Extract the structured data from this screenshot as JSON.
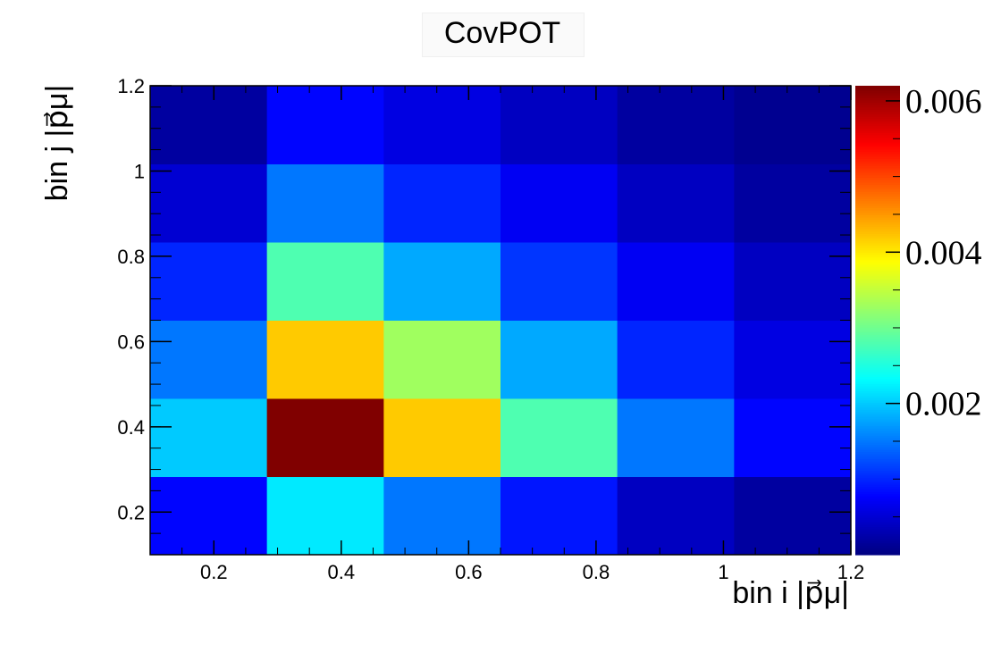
{
  "chart_data": {
    "type": "heatmap",
    "title": "CovPOT",
    "xlabel": "bin i |p⃗μ|",
    "ylabel": "bin j |p⃗μ|",
    "xlim": [
      0.1,
      1.2
    ],
    "ylim": [
      0.1,
      1.2
    ],
    "x_edges": [
      0.1,
      0.2833,
      0.4667,
      0.65,
      0.8333,
      1.0167,
      1.2
    ],
    "y_edges": [
      0.1,
      0.2833,
      0.4667,
      0.65,
      0.8333,
      1.0167,
      1.2
    ],
    "x_ticks": [
      "0.2",
      "0.4",
      "0.6",
      "0.8",
      "1",
      "1.2"
    ],
    "x_tick_values": [
      0.2,
      0.4,
      0.6,
      0.8,
      1.0,
      1.2
    ],
    "y_ticks": [
      "0.2",
      "0.4",
      "0.6",
      "0.8",
      "1",
      "1.2"
    ],
    "y_tick_values": [
      0.2,
      0.4,
      0.6,
      0.8,
      1.0,
      1.2
    ],
    "z_range": [
      0.0,
      0.0062
    ],
    "z_ticks": [
      "0.002",
      "0.004",
      "0.006"
    ],
    "z_tick_values": [
      0.002,
      0.004,
      0.006
    ],
    "colormap": "jet",
    "grid": false,
    "values": [
      [
        0.0008,
        0.0022,
        0.0015,
        0.0009,
        0.0004,
        0.0002
      ],
      [
        0.002,
        0.0062,
        0.0042,
        0.0028,
        0.0015,
        0.0008
      ],
      [
        0.0015,
        0.0042,
        0.0033,
        0.0018,
        0.001,
        0.0006
      ],
      [
        0.001,
        0.0028,
        0.0018,
        0.0011,
        0.0007,
        0.0004
      ],
      [
        0.0005,
        0.0015,
        0.001,
        0.0007,
        0.0004,
        0.0002
      ],
      [
        0.0002,
        0.0008,
        0.0006,
        0.0004,
        0.0002,
        0.0001
      ]
    ]
  }
}
